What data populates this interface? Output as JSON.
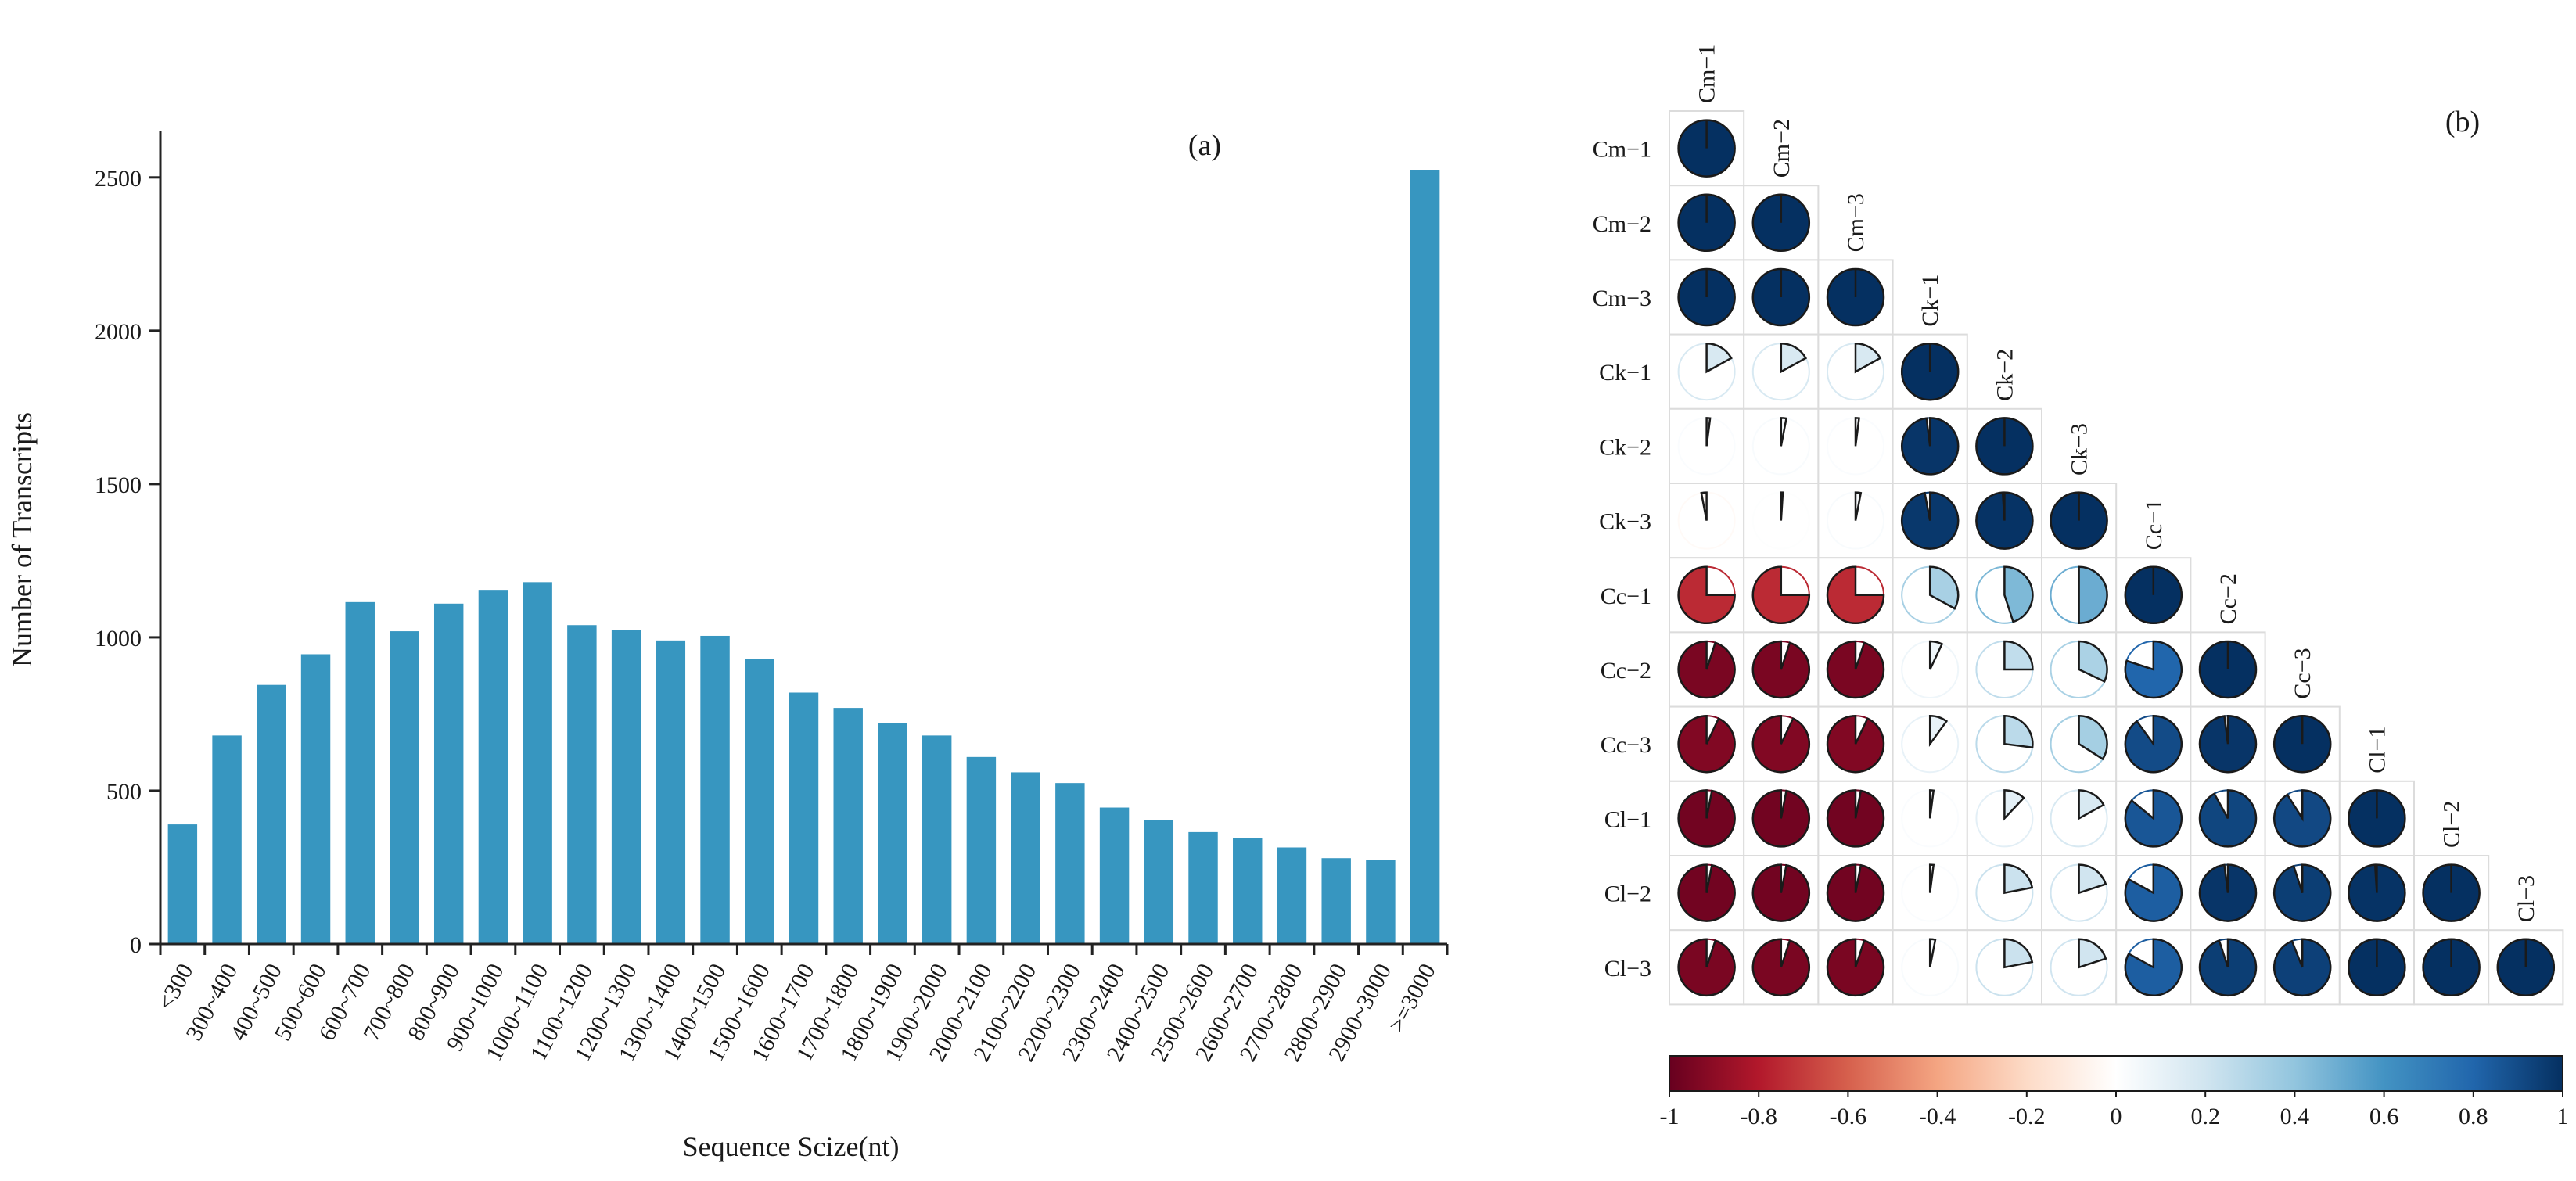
{
  "panel_a": {
    "label": "(a)",
    "chart_data": {
      "type": "bar",
      "xlabel": "Sequence Scize(nt)",
      "ylabel": "Number of Transcripts",
      "ylim": [
        0,
        2650
      ],
      "yticks": [
        0,
        500,
        1000,
        1500,
        2000,
        2500
      ],
      "categories": [
        "<300",
        "300~400",
        "400~500",
        "500~600",
        "600~700",
        "700~800",
        "800~900",
        "900~1000",
        "1000~1100",
        "1100~1200",
        "1200~1300",
        "1300~1400",
        "1400~1500",
        "1500~1600",
        "1600~1700",
        "1700~1800",
        "1800~1900",
        "1900~2000",
        "2000~2100",
        "2100~2200",
        "2200~2300",
        "2300~2400",
        "2400~2500",
        "2500~2600",
        "2600~2700",
        "2700~2800",
        "2800~2900",
        "2900~3000",
        ">=3000"
      ],
      "values": [
        390,
        680,
        845,
        945,
        1115,
        1020,
        1110,
        1155,
        1180,
        1040,
        1025,
        990,
        1005,
        930,
        820,
        770,
        720,
        680,
        610,
        560,
        525,
        445,
        405,
        365,
        345,
        315,
        280,
        275,
        2525
      ],
      "bar_color": "#3796c0",
      "grid": false
    }
  },
  "panel_b": {
    "label": "(b)",
    "chart_data": {
      "type": "heatmap",
      "style": "lower-triangle correlation matrix, pie glyphs",
      "labels": [
        "Cm−1",
        "Cm−2",
        "Cm−3",
        "Ck−1",
        "Ck−2",
        "Ck−3",
        "Cc−1",
        "Cc−2",
        "Cc−3",
        "Cl−1",
        "Cl−2",
        "Cl−3"
      ],
      "matrix": [
        [
          1,
          null,
          null,
          null,
          null,
          null,
          null,
          null,
          null,
          null,
          null,
          null
        ],
        [
          1,
          1,
          null,
          null,
          null,
          null,
          null,
          null,
          null,
          null,
          null,
          null
        ],
        [
          1,
          1,
          1,
          null,
          null,
          null,
          null,
          null,
          null,
          null,
          null,
          null
        ],
        [
          0.17,
          0.17,
          0.17,
          1,
          null,
          null,
          null,
          null,
          null,
          null,
          null,
          null
        ],
        [
          0.02,
          0.03,
          0.02,
          0.98,
          1,
          null,
          null,
          null,
          null,
          null,
          null,
          null
        ],
        [
          -0.03,
          0.01,
          0.03,
          0.97,
          0.99,
          1,
          null,
          null,
          null,
          null,
          null,
          null
        ],
        [
          -0.75,
          -0.75,
          -0.75,
          0.33,
          0.45,
          0.5,
          1,
          null,
          null,
          null,
          null,
          null
        ],
        [
          -0.95,
          -0.95,
          -0.95,
          0.07,
          0.25,
          0.32,
          0.8,
          1,
          null,
          null,
          null,
          null
        ],
        [
          -0.93,
          -0.93,
          -0.93,
          0.1,
          0.27,
          0.34,
          0.9,
          0.98,
          1,
          null,
          null,
          null
        ],
        [
          -0.97,
          -0.97,
          -0.97,
          0.02,
          0.12,
          0.17,
          0.86,
          0.92,
          0.91,
          1,
          null,
          null
        ],
        [
          -0.97,
          -0.97,
          -0.97,
          0.02,
          0.22,
          0.2,
          0.83,
          0.98,
          0.95,
          0.99,
          1,
          null
        ],
        [
          -0.95,
          -0.95,
          -0.95,
          0.03,
          0.22,
          0.2,
          0.83,
          0.95,
          0.94,
          1,
          1,
          1
        ]
      ],
      "colorbar": {
        "min": -1,
        "max": 1,
        "ticks": [
          "-1",
          "-0.8",
          "-0.6",
          "-0.4",
          "-0.2",
          "0",
          "0.2",
          "0.4",
          "0.6",
          "0.8",
          "1"
        ],
        "stops": [
          "#67001f",
          "#b2182b",
          "#d6604d",
          "#f4a582",
          "#fddbc7",
          "#ffffff",
          "#d1e5f0",
          "#92c5de",
          "#4393c3",
          "#2166ac",
          "#053061"
        ]
      }
    }
  }
}
